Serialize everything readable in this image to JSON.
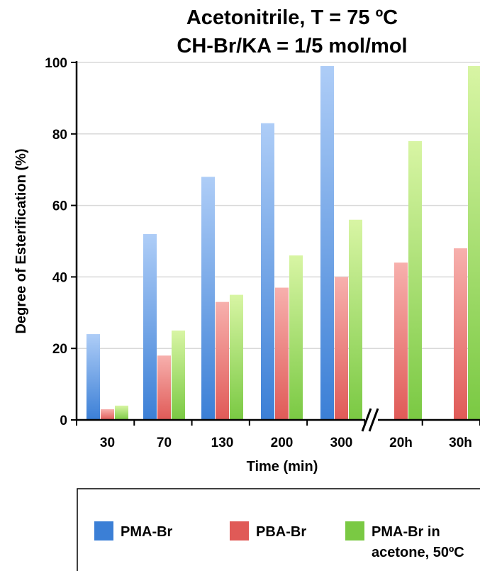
{
  "chart_data": {
    "type": "bar",
    "title": [
      "Acetonitrile, T = 75 ºC",
      "CH-Br/KA = 1/5 mol/mol"
    ],
    "xlabel": "Time (min)",
    "ylabel": "Degree of Esterification (%)",
    "ylim": [
      0,
      100
    ],
    "yticks": [
      "0",
      "20",
      "40",
      "60",
      "80",
      "100"
    ],
    "categories": [
      "30",
      "70",
      "130",
      "200",
      "300",
      "20h",
      "30h"
    ],
    "axis_break": "between 300 and 20h",
    "grid": "horizontal",
    "legend_position": "bottom",
    "series": [
      {
        "name": "PMA-Br",
        "color": "#3b7fd6",
        "values": [
          24,
          52,
          68,
          83,
          99,
          null,
          null
        ]
      },
      {
        "name": "PBA-Br",
        "color": "#e05a57",
        "values": [
          3,
          18,
          33,
          37,
          40,
          44,
          48
        ]
      },
      {
        "name": "PMA-Br  in acetone, 50ºC",
        "name_lines": [
          "PMA-Br  in",
          "acetone, 50ºC"
        ],
        "color": "#7ac943",
        "values": [
          4,
          25,
          35,
          46,
          56,
          78,
          99
        ]
      }
    ]
  }
}
